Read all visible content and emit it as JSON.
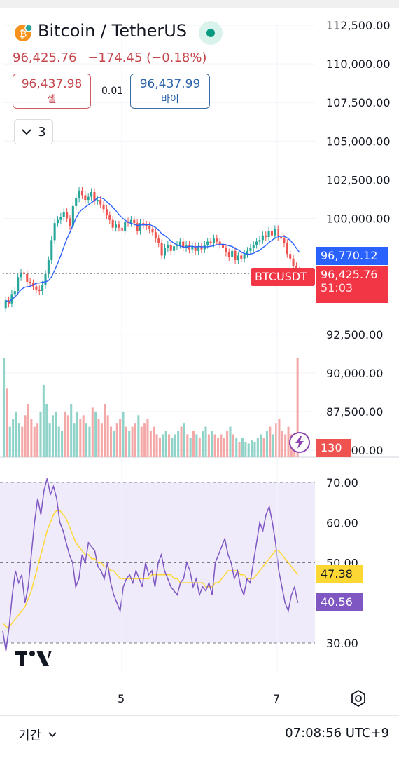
{
  "header": {
    "title": "Bitcoin / TetherUS",
    "last_price": "96,425.76",
    "change": "−174.45 (−0.18%)",
    "sell_price": "96,437.98",
    "sell_label": "셀",
    "spread": "0.01",
    "buy_price": "96,437.99",
    "buy_label": "바이",
    "indicator_count": "3"
  },
  "tags": {
    "ma_value": "96,770.12",
    "symbol": "BTCUSDT",
    "price_value": "96,425.76",
    "countdown": "51:03",
    "volume_value": "130",
    "rsi_ma_value": "47.38",
    "rsi_value": "40.56"
  },
  "price_axis": {
    "ticks": [
      "112,500.00",
      "110,000.00",
      "107,500.00",
      "105,000.00",
      "102,500.00",
      "100,000.00",
      "92,500.00",
      "90,000.00",
      "87,500.00",
      "85,000.00"
    ],
    "tick_values": [
      112500,
      110000,
      107500,
      105000,
      102500,
      100000,
      92500,
      90000,
      87500,
      85000
    ]
  },
  "rsi_axis": {
    "ticks": [
      "70.00",
      "60.00",
      "50.00",
      "30.00"
    ],
    "tick_values": [
      70,
      60,
      50,
      30
    ]
  },
  "time_axis": {
    "labels": [
      "5",
      "7"
    ]
  },
  "bottom": {
    "period_label": "기간",
    "clock": "07:08:56 UTC+9"
  },
  "colors": {
    "up": "#26a69a",
    "down": "#ef5350",
    "ma": "#2962ff",
    "rsi": "#7e57c2",
    "rsi_ma": "#fdd835",
    "rsi_band": "#f0ebfa"
  },
  "chart_data": [
    {
      "type": "candlestick",
      "ylim": [
        85000,
        113000
      ],
      "closes": [
        94700,
        94500,
        95100,
        95300,
        96200,
        96500,
        96400,
        95900,
        95800,
        95600,
        95400,
        95300,
        95700,
        96400,
        97300,
        98600,
        99700,
        99900,
        100100,
        100400,
        100000,
        99500,
        100800,
        101300,
        101800,
        101500,
        101200,
        101400,
        101700,
        101100,
        101200,
        100900,
        100600,
        100200,
        99900,
        99400,
        99600,
        99400,
        99200,
        99800,
        99700,
        99900,
        99700,
        99200,
        99700,
        99600,
        99500,
        99300,
        99100,
        98700,
        98400,
        97600,
        98100,
        98300,
        97900,
        98200,
        98300,
        98500,
        98100,
        98300,
        98000,
        98200,
        97900,
        98200,
        98000,
        98300,
        98500,
        98400,
        98700,
        98500,
        98300,
        98100,
        97800,
        97500,
        97900,
        97300,
        97600,
        97400,
        97700,
        97900,
        98100,
        98300,
        98500,
        98600,
        98900,
        98800,
        99200,
        98900,
        99300,
        98800,
        98700,
        98400,
        97700,
        97400,
        96900,
        96600,
        96400
      ],
      "ma_last": 96770.12,
      "price_last": 96425.76
    },
    {
      "type": "bar",
      "name": "volume",
      "values": [
        130,
        90,
        40,
        50,
        60,
        45,
        40,
        55,
        70,
        50,
        40,
        45,
        60,
        95,
        70,
        45,
        55,
        60,
        40,
        35,
        60,
        55,
        70,
        45,
        60,
        50,
        55,
        45,
        40,
        65,
        60,
        50,
        45,
        70,
        55,
        40,
        35,
        45,
        50,
        60,
        40,
        35,
        40,
        45,
        55,
        40,
        45,
        50,
        35,
        40,
        30,
        25,
        30,
        35,
        30,
        25,
        30,
        35,
        40,
        45,
        30,
        25,
        35,
        30,
        25,
        35,
        40,
        30,
        35,
        30,
        25,
        30,
        25,
        35,
        40,
        30,
        25,
        20,
        25,
        20,
        18,
        22,
        20,
        25,
        30,
        25,
        35,
        40,
        30,
        45,
        50,
        35,
        30,
        40,
        30,
        25,
        130
      ]
    },
    {
      "type": "line",
      "name": "RSI",
      "ylim": [
        25,
        75
      ],
      "values": [
        33,
        28,
        34,
        42,
        48,
        45,
        47,
        40,
        44,
        52,
        60,
        66,
        62,
        68,
        71,
        67,
        69,
        66,
        60,
        58,
        55,
        52,
        50,
        44,
        46,
        52,
        50,
        55,
        54,
        53,
        49,
        48,
        46,
        50,
        45,
        42,
        40,
        38,
        44,
        46,
        47,
        45,
        48,
        46,
        44,
        50,
        47,
        48,
        44,
        50,
        52,
        48,
        46,
        44,
        43,
        42,
        45,
        46,
        50,
        48,
        44,
        46,
        42,
        44,
        43,
        45,
        42,
        50,
        52,
        54,
        56,
        52,
        50,
        46,
        48,
        44,
        42,
        46,
        45,
        50,
        55,
        60,
        58,
        62,
        64,
        60,
        55,
        48,
        44,
        40,
        38,
        42,
        44,
        40
      ],
      "ma_values": [
        35,
        34,
        34,
        35,
        36,
        37,
        38,
        39,
        41,
        43,
        46,
        49,
        52,
        55,
        58,
        60,
        62,
        63,
        63,
        62,
        61,
        59,
        57,
        55,
        54,
        53,
        52,
        52,
        51,
        51,
        50,
        50,
        49,
        49,
        48,
        48,
        47,
        46,
        46,
        46,
        46,
        46,
        46,
        46,
        46,
        46,
        46,
        47,
        47,
        47,
        47,
        47,
        47,
        47,
        46,
        46,
        45,
        45,
        45,
        45,
        45,
        45,
        45,
        45,
        44,
        44,
        44,
        45,
        45,
        46,
        47,
        48,
        48,
        48,
        48,
        47,
        47,
        46,
        46,
        46,
        47,
        48,
        49,
        50,
        51,
        52,
        53,
        53,
        52,
        51,
        50,
        49,
        48,
        47
      ],
      "rsi_last": 40.56,
      "ma_last": 47.38
    }
  ]
}
